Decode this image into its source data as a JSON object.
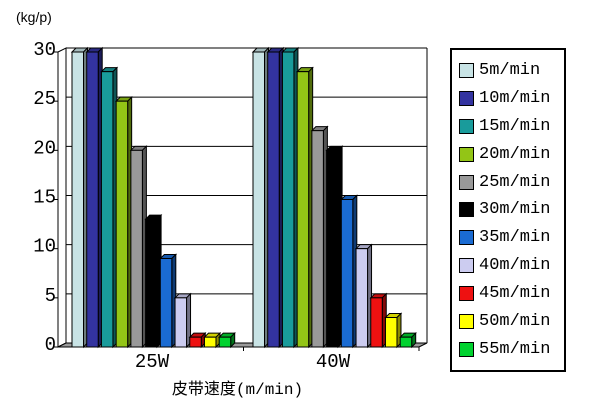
{
  "chart_data": {
    "type": "bar",
    "style": "3d-clustered-column",
    "title": "",
    "xlabel": "皮带速度(m/min)",
    "ylabel": "(kg/p)",
    "categories": [
      "25W",
      "40W"
    ],
    "yticks": [
      0,
      5,
      10,
      15,
      20,
      25,
      30
    ],
    "ylim": [
      0,
      30
    ],
    "grid": true,
    "legend_position": "right",
    "series": [
      {
        "name": "5m/min",
        "color": "#C8E3E5",
        "values": [
          30,
          30
        ]
      },
      {
        "name": "10m/min",
        "color": "#3333A0",
        "values": [
          30,
          30
        ]
      },
      {
        "name": "15m/min",
        "color": "#199B9B",
        "values": [
          28,
          30
        ]
      },
      {
        "name": "20m/min",
        "color": "#93C516",
        "values": [
          25,
          28
        ]
      },
      {
        "name": "25m/min",
        "color": "#999999",
        "values": [
          20,
          22
        ]
      },
      {
        "name": "30m/min",
        "color": "#000000",
        "values": [
          13,
          20
        ]
      },
      {
        "name": "35m/min",
        "color": "#1A6BD2",
        "values": [
          9,
          15
        ]
      },
      {
        "name": "40m/min",
        "color": "#CCCCF0",
        "values": [
          5,
          10
        ]
      },
      {
        "name": "45m/min",
        "color": "#EE1111",
        "values": [
          1,
          5
        ]
      },
      {
        "name": "50m/min",
        "color": "#FFFF00",
        "values": [
          1,
          3
        ]
      },
      {
        "name": "55m/min",
        "color": "#00D22F",
        "values": [
          1,
          1
        ]
      }
    ],
    "colors": {
      "background": "#FFFFFF",
      "gridline": "#000000",
      "floor": "#9A9A9A",
      "wall": "#FFFFFF"
    }
  }
}
